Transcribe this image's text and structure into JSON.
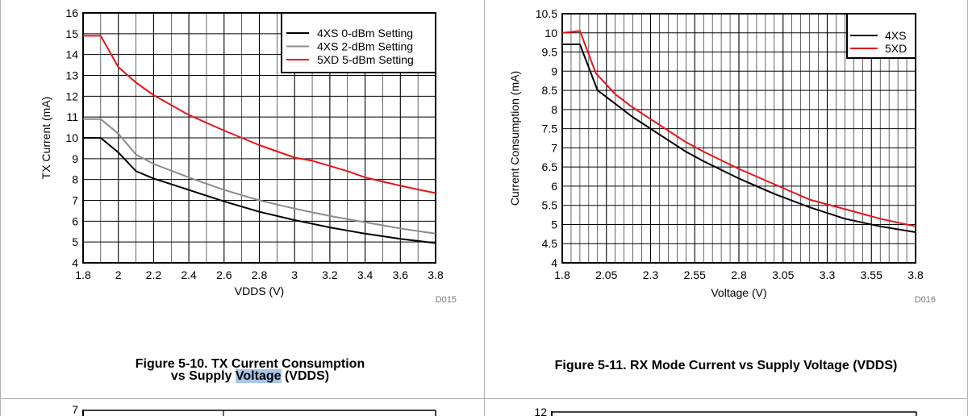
{
  "colors": {
    "black_series": "#000000",
    "gray_series": "#8c8c8c",
    "red_series": "#e8141b",
    "highlight": "#a9c6e8"
  },
  "figure1": {
    "caption_line1": "Figure 5-10. TX Current Consumption",
    "caption_line2_pre": "vs Supply ",
    "caption_line2_highlight": "Voltage",
    "caption_line2_post": " (VDDS)",
    "code": "D015"
  },
  "figure2": {
    "caption": "Figure 5-11. RX Mode Current vs Supply Voltage (VDDS)",
    "code": "D016"
  },
  "bottom_left_partial_tick": "7",
  "bottom_right_partial_tick": "12",
  "chart_data": [
    {
      "type": "line",
      "xlabel": "VDDS (V)",
      "ylabel": "TX Current (mA)",
      "xlim": [
        1.8,
        3.8
      ],
      "ylim": [
        4,
        16
      ],
      "grid": true,
      "legend_position": "top-right",
      "x_ticks": [
        "1.8",
        "2",
        "2.2",
        "2.4",
        "2.6",
        "2.8",
        "3",
        "3.2",
        "3.4",
        "3.6",
        "3.8"
      ],
      "y_ticks": [
        "4",
        "5",
        "6",
        "7",
        "8",
        "9",
        "10",
        "11",
        "12",
        "13",
        "14",
        "15",
        "16"
      ],
      "series": [
        {
          "name": "4XS 0-dBm Setting",
          "color": "#000000",
          "x": [
            1.8,
            1.9,
            2.0,
            2.1,
            2.2,
            2.4,
            2.6,
            2.8,
            3.0,
            3.2,
            3.4,
            3.6,
            3.8
          ],
          "y": [
            10,
            10,
            9.3,
            8.4,
            8.05,
            7.5,
            6.95,
            6.45,
            6.05,
            5.7,
            5.4,
            5.15,
            4.95
          ]
        },
        {
          "name": "4XS 2-dBm Setting",
          "color": "#8c8c8c",
          "x": [
            1.8,
            1.9,
            2.0,
            2.1,
            2.2,
            2.4,
            2.6,
            2.8,
            3.0,
            3.2,
            3.4,
            3.6,
            3.8
          ],
          "y": [
            10.9,
            10.9,
            10.2,
            9.2,
            8.75,
            8.1,
            7.5,
            7.0,
            6.6,
            6.25,
            5.95,
            5.65,
            5.4
          ]
        },
        {
          "name": "5XD 5-dBm Setting",
          "color": "#e8141b",
          "x": [
            1.8,
            1.9,
            2.0,
            2.1,
            2.2,
            2.4,
            2.6,
            2.8,
            3.0,
            3.1,
            3.3,
            3.4,
            3.6,
            3.8
          ],
          "y": [
            14.9,
            14.9,
            13.4,
            12.65,
            12.05,
            11.1,
            10.35,
            9.65,
            9.05,
            8.9,
            8.4,
            8.1,
            7.7,
            7.35
          ]
        }
      ]
    },
    {
      "type": "line",
      "xlabel": "Voltage (V)",
      "ylabel": "Current Consumption (mA)",
      "xlim": [
        1.8,
        3.8
      ],
      "ylim": [
        4,
        10.5
      ],
      "grid": true,
      "legend_position": "top-right",
      "x_ticks": [
        "1.8",
        "2.05",
        "2.3",
        "2.55",
        "2.8",
        "3.05",
        "3.3",
        "3.55",
        "3.8"
      ],
      "y_ticks": [
        "4",
        "4.5",
        "5",
        "5.5",
        "6",
        "6.5",
        "7",
        "7.5",
        "8",
        "8.5",
        "9",
        "9.5",
        "10",
        "10.5"
      ],
      "series": [
        {
          "name": "4XS",
          "color": "#000000",
          "x": [
            1.8,
            1.9,
            2.0,
            2.1,
            2.2,
            2.3,
            2.4,
            2.5,
            2.6,
            2.8,
            3.0,
            3.2,
            3.4,
            3.6,
            3.8
          ],
          "y": [
            9.7,
            9.7,
            8.5,
            8.15,
            7.8,
            7.5,
            7.2,
            6.9,
            6.65,
            6.2,
            5.8,
            5.45,
            5.15,
            4.95,
            4.8
          ]
        },
        {
          "name": "5XD",
          "color": "#e8141b",
          "x": [
            1.8,
            1.9,
            1.99,
            2.1,
            2.2,
            2.3,
            2.4,
            2.5,
            2.6,
            2.8,
            3.0,
            3.2,
            3.4,
            3.6,
            3.8
          ],
          "y": [
            10.0,
            10.05,
            8.95,
            8.4,
            8.05,
            7.75,
            7.45,
            7.15,
            6.9,
            6.45,
            6.05,
            5.65,
            5.4,
            5.15,
            4.95
          ]
        }
      ]
    }
  ]
}
